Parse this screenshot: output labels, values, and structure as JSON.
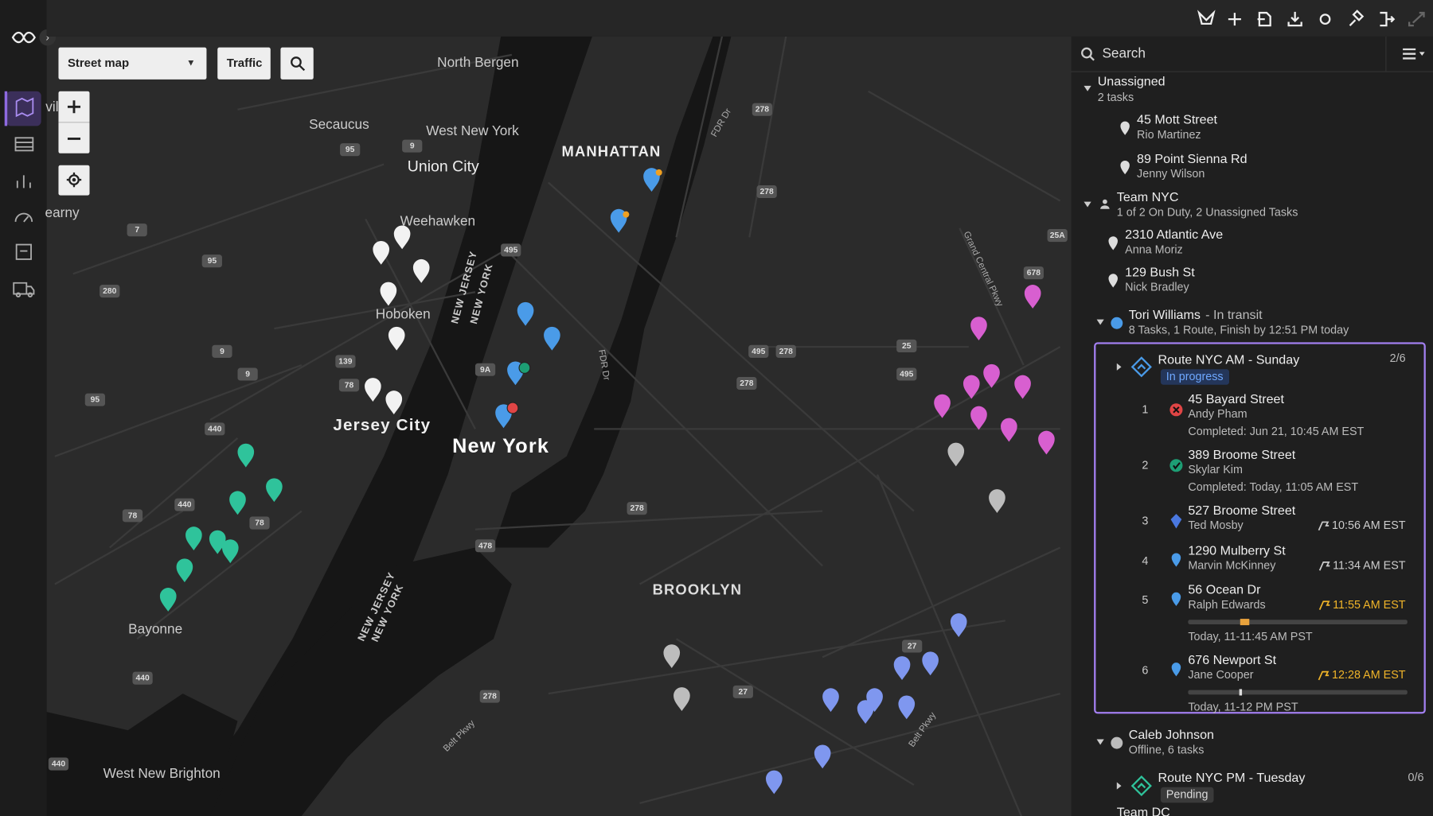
{
  "toolbar": {
    "map_type": "Street map",
    "traffic": "Traffic"
  },
  "map": {
    "labels": [
      "North Bergen",
      "Secaucus",
      "West New York",
      "Union City",
      "Weehawken",
      "Hoboken",
      "Jersey City",
      "New York",
      "MANHATTAN",
      "BROOKLYN",
      "Bayonne",
      "West New Brighton",
      "NEW JERSEY",
      "NEW YORK",
      "NEW JERSEY",
      "NEW YORK",
      "FDR Dr",
      "FDR Dr",
      "Grand Central Pkwy",
      "Belt Pkwy",
      "Belt Pkwy",
      "earny",
      "vil"
    ],
    "shields": [
      "495",
      "9",
      "95",
      "7",
      "95",
      "280",
      "9",
      "139",
      "78",
      "9",
      "95",
      "440",
      "440",
      "78",
      "78",
      "478",
      "278",
      "278",
      "278",
      "495",
      "278",
      "278",
      "25",
      "495",
      "25A",
      "678",
      "27",
      "27",
      "278",
      "440",
      "9A",
      "440"
    ]
  },
  "panel": {
    "search": "Search",
    "unassigned": {
      "title": "Unassigned",
      "subtitle": "2 tasks",
      "tasks": [
        {
          "address": "45 Mott Street",
          "name": "Rio Martinez"
        },
        {
          "address": "89 Point Sienna Rd",
          "name": "Jenny Wilson"
        }
      ]
    },
    "team": {
      "title": "Team NYC",
      "subtitle": "1 of 2 On Duty, 2 Unassigned Tasks",
      "tasks": [
        {
          "address": "2310 Atlantic Ave",
          "name": "Anna Moriz"
        },
        {
          "address": "129 Bush St",
          "name": "Nick Bradley"
        }
      ]
    },
    "drivers": [
      {
        "name": "Tori Williams",
        "status": "- In transit",
        "subtitle": "8 Tasks, 1 Route, Finish by 12:51 PM today",
        "route": {
          "title": "Route NYC AM - Sunday",
          "status": "In progress",
          "progress": "2/6",
          "stops": [
            {
              "number": 1,
              "address": "45 Bayard Street",
              "name": "Andy Pham",
              "detail": "Completed: Jun 21, 10:45 AM EST"
            },
            {
              "number": 2,
              "address": "389 Broome Street",
              "name": "Skylar Kim",
              "detail": "Completed: Today, 11:05 AM EST"
            },
            {
              "number": 3,
              "address": "527 Broome Street",
              "name": "Ted Mosby",
              "time": "10:56 AM EST"
            },
            {
              "number": 4,
              "address": "1290 Mulberry St",
              "name": "Marvin McKinney",
              "time": "11:34 AM EST"
            },
            {
              "number": 5,
              "address": "56 Ocean Dr",
              "name": "Ralph Edwards",
              "time": "11:55 AM EST",
              "window": "Today, 11-11:45 AM PST"
            },
            {
              "number": 6,
              "address": "676 Newport St",
              "name": "Jane Cooper",
              "time": "12:28 AM EST",
              "window": "Today, 11-12 PM PST"
            }
          ]
        }
      },
      {
        "name": "Caleb Johnson",
        "subtitle": "Offline, 6 tasks",
        "route": {
          "title": "Route NYC PM - Tuesday",
          "status": "Pending",
          "progress": "0/6"
        }
      }
    ],
    "next_team": "Team DC"
  }
}
